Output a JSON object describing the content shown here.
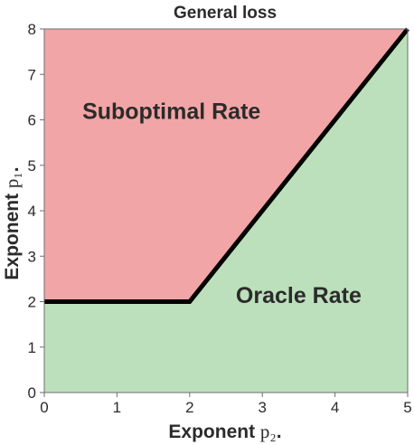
{
  "chart_data": {
    "type": "area",
    "title": "General loss",
    "xlabel": "Exponent p₂.",
    "ylabel": "Exponent p₁.",
    "xlim": [
      0,
      5
    ],
    "ylim": [
      0,
      8
    ],
    "xticks": [
      0,
      1,
      2,
      3,
      4,
      5
    ],
    "yticks": [
      0,
      1,
      2,
      3,
      4,
      5,
      6,
      7,
      8
    ],
    "boundary": {
      "x": [
        0,
        2,
        5
      ],
      "y": [
        2,
        2,
        8
      ],
      "color": "#000000"
    },
    "regions": [
      {
        "label": "Suboptimal Rate",
        "side": "above",
        "color": "#f2a5a6",
        "label_pos": [
          1.75,
          6.2
        ]
      },
      {
        "label": "Oracle Rate",
        "side": "below",
        "color": "#bce0bb",
        "label_pos": [
          3.5,
          2.15
        ]
      }
    ],
    "grid": false
  }
}
